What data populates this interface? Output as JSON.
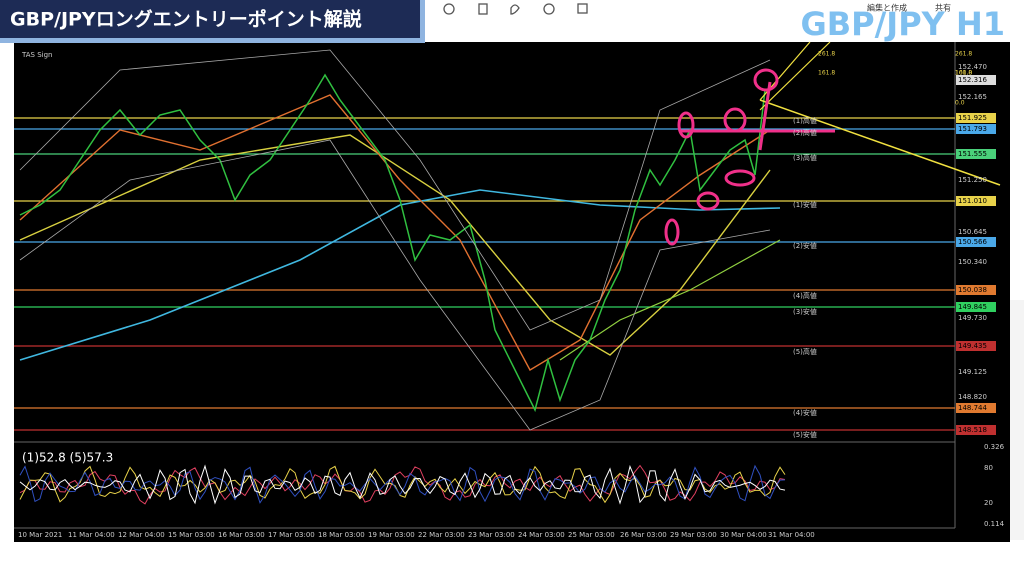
{
  "header": {
    "title": "GBP/JPYロングエントリーポイント解説",
    "symbol": "GBP/JPY H1"
  },
  "toolbar": {
    "edit": "編集と作成",
    "share": "共有"
  },
  "chart": {
    "indicator_name": "TAS Sign",
    "price_axis": [
      "152.470",
      "152.316",
      "152.165",
      "151.925",
      "151.793",
      "151.555",
      "151.250",
      "151.010",
      "150.645",
      "150.566",
      "150.340",
      "150.038",
      "149.845",
      "149.730",
      "149.435",
      "149.125",
      "148.820",
      "148.744",
      "148.518"
    ],
    "levels": [
      "(1)高値",
      "(2)高値",
      "(3)高値",
      "(1)安値",
      "(2)安値",
      "(4)高値",
      "(3)安値",
      "(5)高値",
      "(4)安値",
      "(5)安値"
    ],
    "fib": [
      "261.8",
      "261.8",
      "161.8",
      "161.8",
      "100.0",
      "0.0"
    ],
    "dates": [
      "10 Mar 2021",
      "11 Mar 04:00",
      "12 Mar 04:00",
      "15 Mar 03:00",
      "16 Mar 03:00",
      "17 Mar 03:00",
      "18 Mar 03:00",
      "19 Mar 03:00",
      "22 Mar 03:00",
      "23 Mar 03:00",
      "24 Mar 03:00",
      "25 Mar 03:00",
      "26 Mar 03:00",
      "29 Mar 03:00",
      "30 Mar 04:00",
      "31 Mar 04:00"
    ]
  },
  "oscillator": {
    "readout": "(1)52.8 (5)57.3",
    "axis": [
      "0.326",
      "80",
      "20",
      "0.114"
    ]
  }
}
